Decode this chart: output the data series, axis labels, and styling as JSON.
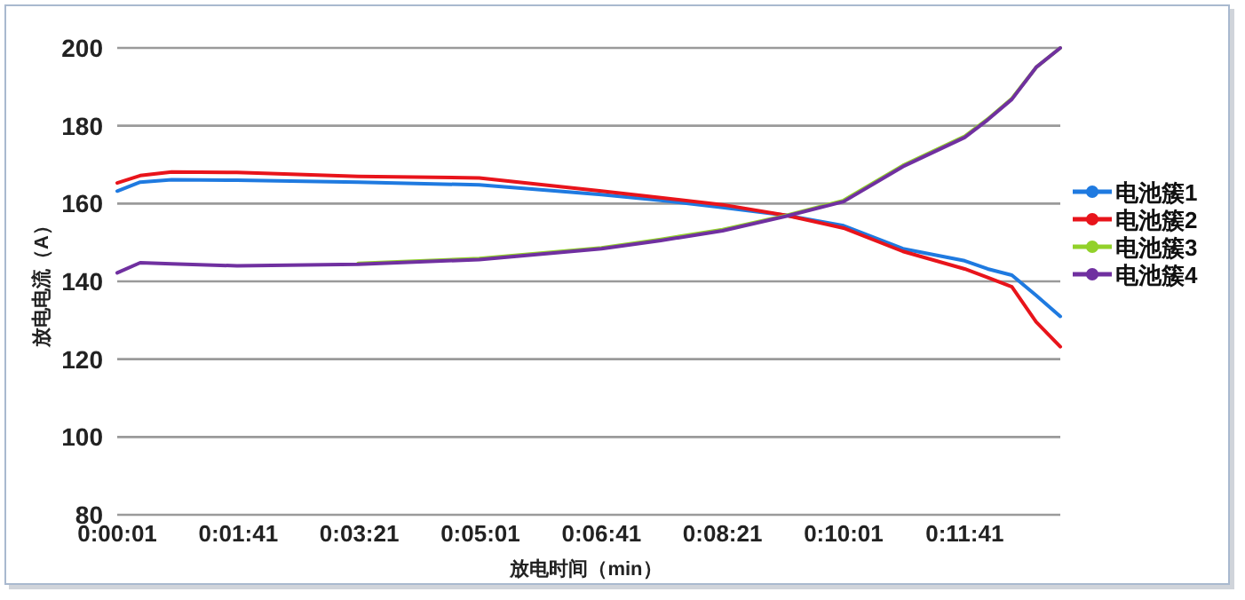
{
  "chart_data": {
    "type": "line",
    "xlabel": "放电时间（min）",
    "ylabel": "放电电流（A）",
    "x": [
      0.000278,
      0.005556,
      0.012778,
      0.027778,
      0.055556,
      0.083333,
      0.111389,
      0.125,
      0.139167,
      0.153611,
      0.166944,
      0.180556,
      0.194722,
      0.2,
      0.205556,
      0.211111,
      0.216667
    ],
    "series": [
      {
        "name": "电池簇1",
        "color": "#1f7ae0",
        "values": [
          163.2,
          165.5,
          166.1,
          166,
          165.5,
          164.8,
          162.3,
          160.8,
          159,
          157,
          154.3,
          148.4,
          145.3,
          143.2,
          141.6,
          136.4,
          131
        ]
      },
      {
        "name": "电池簇2",
        "color": "#e8141b",
        "values": [
          165.3,
          167.2,
          168.1,
          168,
          167,
          166.6,
          163.2,
          161.5,
          159.7,
          157,
          153.7,
          147.7,
          143.2,
          141,
          138.6,
          129.6,
          123.2
        ]
      },
      {
        "name": "电池簇3",
        "color": "#92d12a",
        "values": [
          null,
          null,
          null,
          null,
          144.6,
          145.9,
          148.6,
          150.8,
          153.3,
          156.9,
          160.8,
          169.8,
          177.3,
          181.7,
          187,
          195,
          200
        ]
      },
      {
        "name": "电池簇4",
        "color": "#7030a0",
        "values": [
          142.2,
          144.8,
          144.5,
          144,
          144.4,
          145.6,
          148.4,
          150.5,
          153,
          156.7,
          160.5,
          169.5,
          177,
          181.5,
          186.8,
          195,
          200
        ]
      }
    ],
    "xlim": [
      0.000278,
      0.216667
    ],
    "xticks": [
      {
        "value": 0.000278,
        "label": "0:00:01"
      },
      {
        "value": 0.028056,
        "label": "0:01:41"
      },
      {
        "value": 0.055833,
        "label": "0:03:21"
      },
      {
        "value": 0.083611,
        "label": "0:05:01"
      },
      {
        "value": 0.111389,
        "label": "0:06:41"
      },
      {
        "value": 0.139167,
        "label": "0:08:21"
      },
      {
        "value": 0.166944,
        "label": "0:10:01"
      },
      {
        "value": 0.194722,
        "label": "0:11:41"
      }
    ],
    "ylim": [
      80,
      200
    ],
    "yticks": [
      80,
      100,
      120,
      140,
      160,
      180,
      200
    ],
    "grid": "y",
    "legend": "right",
    "marker": "none",
    "line_style": "solid"
  }
}
